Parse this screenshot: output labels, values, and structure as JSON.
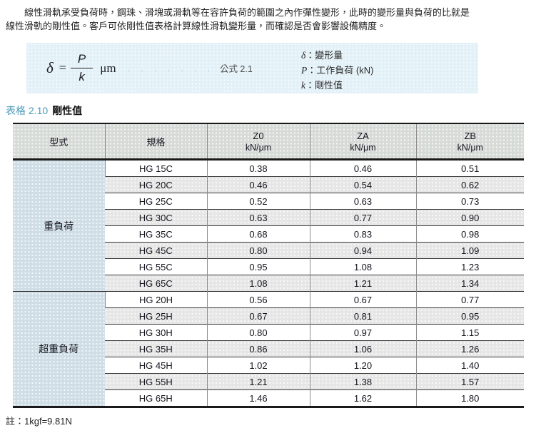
{
  "intro": {
    "lines": [
      "　　線性滑軌承受負荷時，鋼珠、滑塊或滑軌等在容許負荷的範圍之內作彈性變形，此時的變形量與負荷的比就是",
      "線性滑軌的剛性值。客戶可依剛性值表格計算線性滑軌變形量，而確認是否會影響設備精度。"
    ]
  },
  "formula": {
    "delta": "δ",
    "equals": "=",
    "numerator": "P",
    "denominator": "k",
    "unit": "μm",
    "dots": ". . . . . . .",
    "label": "公式 2.1",
    "legend": [
      {
        "symbol": "δ",
        "desc": "：變形量"
      },
      {
        "symbol": "P",
        "desc": "：工作負荷 (kN)"
      },
      {
        "symbol": "k",
        "desc": "：剛性值"
      }
    ]
  },
  "caption": {
    "prefix": "表格 2.10",
    "title": "剛性值"
  },
  "table": {
    "col_headers": {
      "type": "型式",
      "spec": "規格",
      "value_cols": [
        {
          "name": "Z0",
          "unit": "kN/μm"
        },
        {
          "name": "ZA",
          "unit": "kN/μm"
        },
        {
          "name": "ZB",
          "unit": "kN/μm"
        }
      ]
    },
    "groups": [
      {
        "label": "重負荷",
        "rows": [
          {
            "spec": "HG 15C",
            "values": [
              "0.38",
              "0.46",
              "0.51"
            ]
          },
          {
            "spec": "HG 20C",
            "values": [
              "0.46",
              "0.54",
              "0.62"
            ]
          },
          {
            "spec": "HG 25C",
            "values": [
              "0.52",
              "0.63",
              "0.73"
            ]
          },
          {
            "spec": "HG 30C",
            "values": [
              "0.63",
              "0.77",
              "0.90"
            ]
          },
          {
            "spec": "HG 35C",
            "values": [
              "0.68",
              "0.83",
              "0.98"
            ]
          },
          {
            "spec": "HG 45C",
            "values": [
              "0.80",
              "0.94",
              "1.09"
            ]
          },
          {
            "spec": "HG 55C",
            "values": [
              "0.95",
              "1.08",
              "1.23"
            ]
          },
          {
            "spec": "HG 65C",
            "values": [
              "1.08",
              "1.21",
              "1.34"
            ]
          }
        ]
      },
      {
        "label": "超重負荷",
        "rows": [
          {
            "spec": "HG 20H",
            "values": [
              "0.56",
              "0.67",
              "0.77"
            ]
          },
          {
            "spec": "HG 25H",
            "values": [
              "0.67",
              "0.81",
              "0.95"
            ]
          },
          {
            "spec": "HG 30H",
            "values": [
              "0.80",
              "0.97",
              "1.15"
            ]
          },
          {
            "spec": "HG 35H",
            "values": [
              "0.86",
              "1.06",
              "1.26"
            ]
          },
          {
            "spec": "HG 45H",
            "values": [
              "1.02",
              "1.20",
              "1.40"
            ]
          },
          {
            "spec": "HG 55H",
            "values": [
              "1.21",
              "1.38",
              "1.57"
            ]
          },
          {
            "spec": "HG 65H",
            "values": [
              "1.46",
              "1.62",
              "1.80"
            ]
          }
        ]
      }
    ]
  },
  "note": "註：1kgf=9.81N",
  "colors": {
    "formula_box_bg": "#e2f0f7",
    "header_bg": "#d6dbd8",
    "group_col_bg": "#cfdee6",
    "row_alt_bg": "#e6e6e6",
    "caption_accent": "#4a9ab8",
    "text": "#1c1c26"
  }
}
